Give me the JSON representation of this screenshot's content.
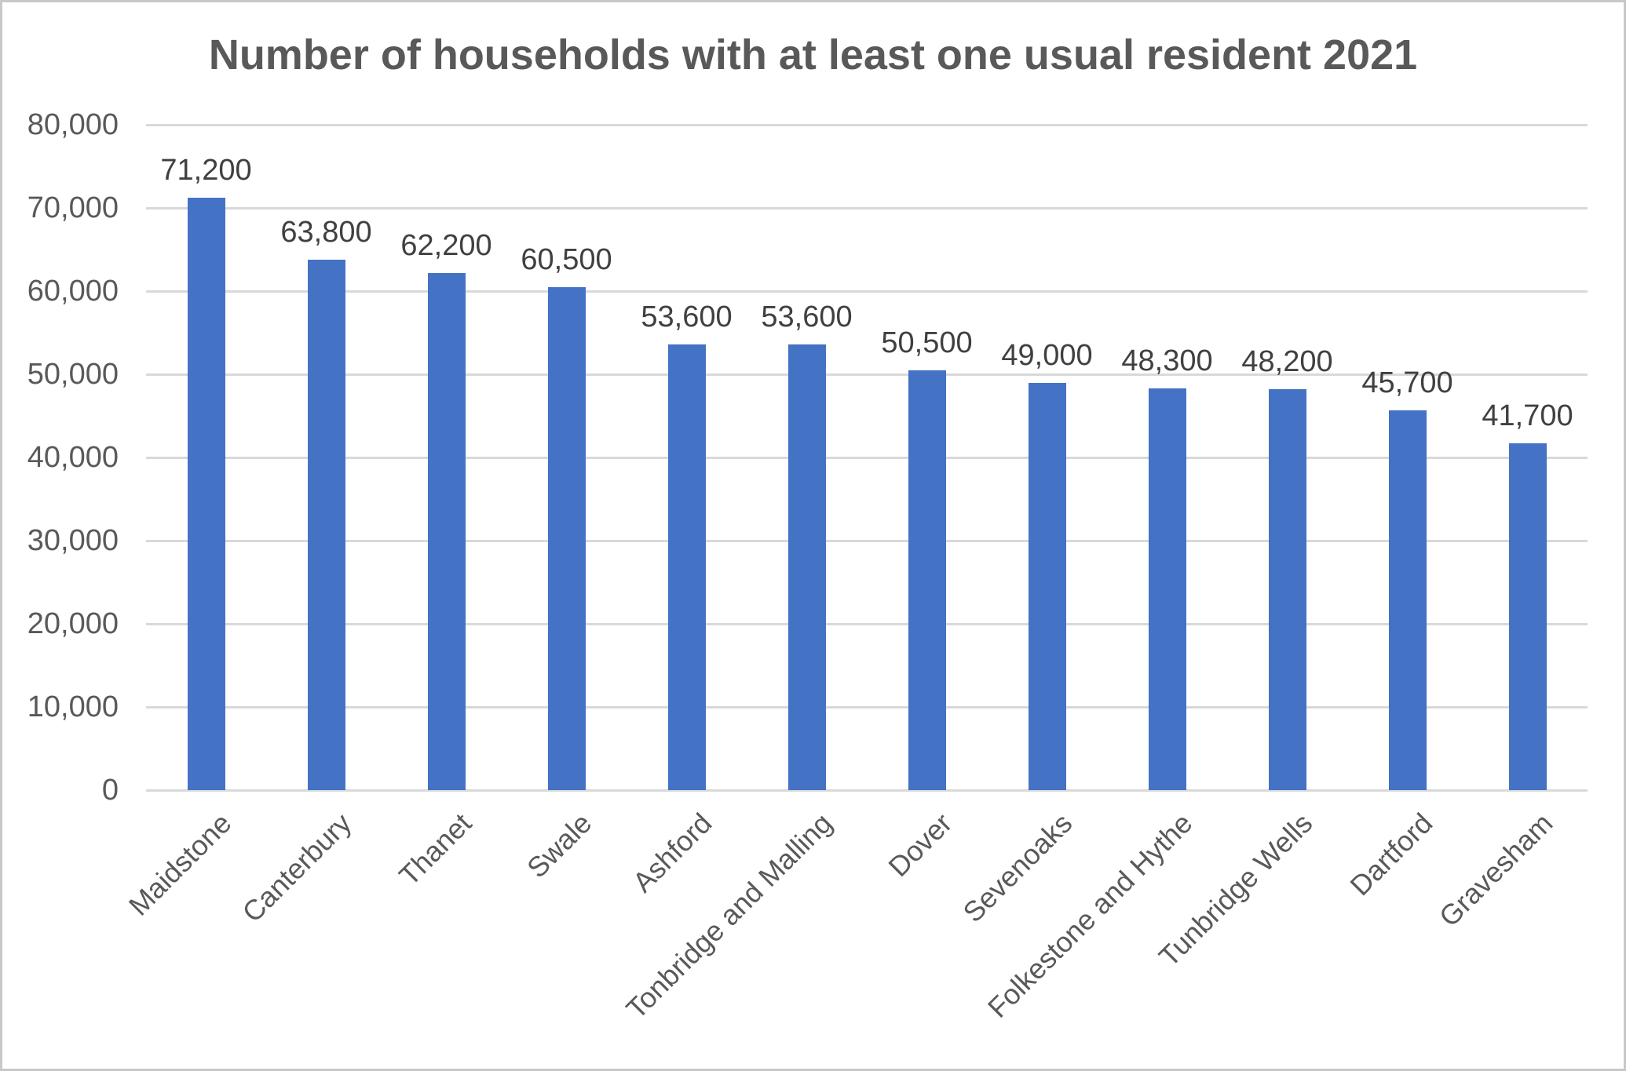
{
  "chart_data": {
    "type": "bar",
    "title": "Number of households with at least one usual resident 2021",
    "categories": [
      "Maidstone",
      "Canterbury",
      "Thanet",
      "Swale",
      "Ashford",
      "Tonbridge and Malling",
      "Dover",
      "Sevenoaks",
      "Folkestone and Hythe",
      "Tunbridge Wells",
      "Dartford",
      "Gravesham"
    ],
    "values": [
      71200,
      63800,
      62200,
      60500,
      53600,
      53600,
      50500,
      49000,
      48300,
      48200,
      45700,
      41700
    ],
    "data_labels": [
      "71,200",
      "63,800",
      "62,200",
      "60,500",
      "53,600",
      "53,600",
      "50,500",
      "49,000",
      "48,300",
      "48,200",
      "45,700",
      "41,700"
    ],
    "y_ticks_top_down": [
      "80,000",
      "70,000",
      "60,000",
      "50,000",
      "40,000",
      "30,000",
      "20,000",
      "10,000",
      "0"
    ],
    "ylim": [
      0,
      80000
    ],
    "y_tick_step": 10000,
    "grid": true,
    "legend": "none",
    "x_label_rotation_deg": -45,
    "colors": {
      "bar": "#4472c4",
      "gridline": "#d9d9d9",
      "title_text": "#595959",
      "axis_text": "#595959",
      "data_label_text": "#404040",
      "frame_border": "#c8c8c8",
      "background": "#ffffff"
    }
  }
}
